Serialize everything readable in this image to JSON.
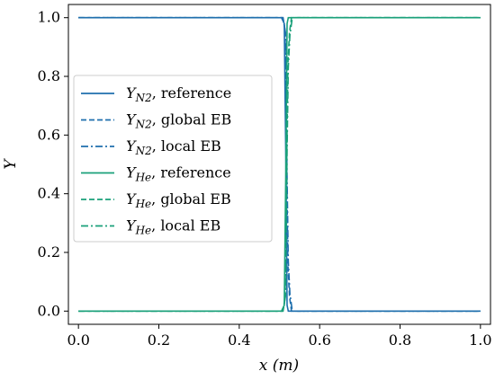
{
  "chart_data": {
    "type": "line",
    "xlabel": "x (m)",
    "ylabel": "Y",
    "xlim": [
      -0.025,
      1.025
    ],
    "ylim": [
      -0.045,
      1.045
    ],
    "xticks": [
      "0.0",
      "0.2",
      "0.4",
      "0.6",
      "0.8",
      "1.0"
    ],
    "yticks": [
      "0.0",
      "0.2",
      "0.4",
      "0.6",
      "0.8",
      "1.0"
    ],
    "grid": false,
    "legend_placement": "center-left",
    "series": [
      {
        "name": "Y_N2, reference",
        "base": "Y",
        "sub": "N2",
        "suffix": ", reference",
        "color": "#1f6fad",
        "dash": "solid",
        "x": [
          0.0,
          0.505,
          0.512,
          0.516,
          0.519,
          0.522,
          1.0
        ],
        "y": [
          1.0,
          1.0,
          0.98,
          0.5,
          0.02,
          0.0,
          0.0
        ]
      },
      {
        "name": "Y_N2, global EB",
        "base": "Y",
        "sub": "N2",
        "suffix": ", global EB",
        "color": "#1f6fad",
        "dash": "dashed",
        "x": [
          0.0,
          0.508,
          0.514,
          0.518,
          0.521,
          0.525,
          0.53,
          1.0
        ],
        "y": [
          1.0,
          1.0,
          0.96,
          0.5,
          0.16,
          0.05,
          0.0,
          0.0
        ]
      },
      {
        "name": "Y_N2, local EB",
        "base": "Y",
        "sub": "N2",
        "suffix": ", local EB",
        "color": "#1f6fad",
        "dash": "dashdot",
        "x": [
          0.0,
          0.509,
          0.515,
          0.519,
          0.522,
          0.526,
          0.532,
          1.0
        ],
        "y": [
          1.0,
          1.0,
          0.95,
          0.45,
          0.17,
          0.06,
          0.0,
          0.0
        ]
      },
      {
        "name": "Y_He, reference",
        "base": "Y",
        "sub": "He",
        "suffix": ", reference",
        "color": "#1aa07a",
        "dash": "solid",
        "x": [
          0.0,
          0.505,
          0.512,
          0.516,
          0.519,
          0.522,
          1.0
        ],
        "y": [
          0.0,
          0.0,
          0.02,
          0.5,
          0.98,
          1.0,
          1.0
        ]
      },
      {
        "name": "Y_He, global EB",
        "base": "Y",
        "sub": "He",
        "suffix": ", global EB",
        "color": "#1aa07a",
        "dash": "dashed",
        "x": [
          0.0,
          0.508,
          0.514,
          0.518,
          0.521,
          0.525,
          0.53,
          1.0
        ],
        "y": [
          0.0,
          0.0,
          0.04,
          0.5,
          0.84,
          0.95,
          1.0,
          1.0
        ]
      },
      {
        "name": "Y_He, local EB",
        "base": "Y",
        "sub": "He",
        "suffix": ", local EB",
        "color": "#1aa07a",
        "dash": "dashdot",
        "x": [
          0.0,
          0.509,
          0.515,
          0.519,
          0.522,
          0.526,
          0.532,
          1.0
        ],
        "y": [
          0.0,
          0.0,
          0.05,
          0.55,
          0.83,
          0.94,
          1.0,
          1.0
        ]
      }
    ]
  }
}
